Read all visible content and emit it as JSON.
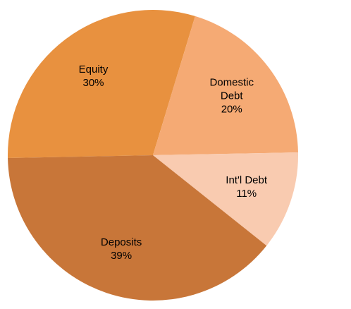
{
  "chart_data": {
    "type": "pie",
    "categories": [
      "Equity",
      "Domestic Debt",
      "Int'l Debt",
      "Deposits"
    ],
    "values": [
      30,
      20,
      11,
      39
    ],
    "value_labels": [
      "30%",
      "20%",
      "11%",
      "39%"
    ],
    "colors": [
      "#e8913f",
      "#f5aa74",
      "#f9cbb0",
      "#c87639"
    ]
  }
}
